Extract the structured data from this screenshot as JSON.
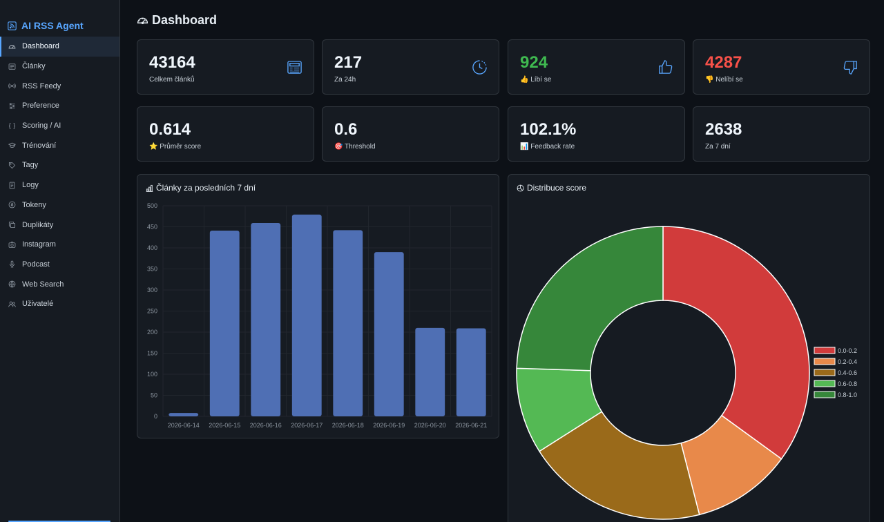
{
  "brand": {
    "name": "AI RSS Agent"
  },
  "sidebar": {
    "items": [
      {
        "label": "Dashboard",
        "icon": "dashboard-icon",
        "active": true
      },
      {
        "label": "Články",
        "icon": "newspaper-icon"
      },
      {
        "label": "RSS Feedy",
        "icon": "broadcast-icon"
      },
      {
        "label": "Preference",
        "icon": "sliders-icon"
      },
      {
        "label": "Scoring / AI",
        "icon": "braces-icon"
      },
      {
        "label": "Trénování",
        "icon": "mortarboard-icon"
      },
      {
        "label": "Tagy",
        "icon": "tag-icon"
      },
      {
        "label": "Logy",
        "icon": "journal-icon"
      },
      {
        "label": "Tokeny",
        "icon": "coin-icon"
      },
      {
        "label": "Duplikáty",
        "icon": "copy-icon"
      },
      {
        "label": "Instagram",
        "icon": "camera-icon"
      },
      {
        "label": "Podcast",
        "icon": "mic-icon"
      },
      {
        "label": "Web Search",
        "icon": "globe-icon"
      },
      {
        "label": "Uživatelé",
        "icon": "people-icon"
      }
    ]
  },
  "header": {
    "title": "Dashboard"
  },
  "stats": [
    {
      "value": "43164",
      "label": "Celkem článků",
      "icon": "newspaper-icon"
    },
    {
      "value": "217",
      "label": "Za 24h",
      "icon": "clock-icon"
    },
    {
      "value": "924",
      "label": "👍 Líbí se",
      "icon": "thumbs-up-icon",
      "color": "#3fb950"
    },
    {
      "value": "4287",
      "label": "👎 Nelíbí se",
      "icon": "thumbs-down-icon",
      "color": "#f85149"
    },
    {
      "value": "0.614",
      "label": "⭐ Průměr score"
    },
    {
      "value": "0.6",
      "label": "🎯 Threshold"
    },
    {
      "value": "102.1%",
      "label": "📊 Feedback rate"
    },
    {
      "value": "2638",
      "label": "Za 7 dní"
    }
  ],
  "panels": {
    "articles_title": "Články za posledních 7 dní",
    "distribution_title": "Distribuce score"
  },
  "chart_data": [
    {
      "type": "bar",
      "title": "Články za posledních 7 dní",
      "categories": [
        "2026-06-14",
        "2026-06-15",
        "2026-06-16",
        "2026-06-17",
        "2026-06-18",
        "2026-06-19",
        "2026-06-20",
        "2026-06-21"
      ],
      "values": [
        8,
        441,
        459,
        479,
        442,
        390,
        210,
        209
      ],
      "ylim": [
        0,
        500
      ],
      "yticks": [
        "0",
        "50",
        "100",
        "150",
        "200",
        "250",
        "300",
        "350",
        "400",
        "450",
        "500"
      ],
      "grid": true,
      "color": "#4f6fb4"
    },
    {
      "type": "pie",
      "title": "Distribuce score",
      "labels": [
        "0.0-0.2",
        "0.2-0.4",
        "0.4-0.6",
        "0.6-0.8",
        "0.8-1.0"
      ],
      "values": [
        35,
        11,
        20,
        9.5,
        24.5
      ],
      "colors": [
        "#d13b3b",
        "#e8894a",
        "#9a6a1a",
        "#54b954",
        "#36873a"
      ],
      "legend": "right"
    }
  ]
}
